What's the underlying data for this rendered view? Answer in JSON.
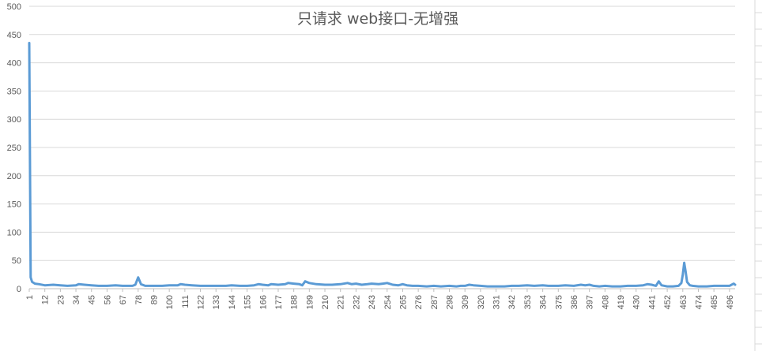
{
  "chart_data": {
    "type": "line",
    "title": "只请求 web接口-无增强",
    "xlabel": "",
    "ylabel": "",
    "ylim": [
      0,
      500
    ],
    "yticks": [
      0,
      50,
      100,
      150,
      200,
      250,
      300,
      350,
      400,
      450,
      500
    ],
    "xlim": [
      1,
      500
    ],
    "xticks": [
      1,
      12,
      23,
      34,
      45,
      56,
      67,
      78,
      89,
      100,
      111,
      122,
      133,
      144,
      155,
      166,
      177,
      188,
      199,
      210,
      221,
      232,
      243,
      254,
      265,
      276,
      287,
      298,
      309,
      320,
      331,
      342,
      353,
      364,
      375,
      386,
      397,
      408,
      419,
      430,
      441,
      452,
      463,
      474,
      485,
      496
    ],
    "grid": true,
    "legend": "none",
    "series": [
      {
        "color": "#5b9bd5",
        "points": [
          [
            1,
            435
          ],
          [
            2,
            20
          ],
          [
            3,
            12
          ],
          [
            5,
            9
          ],
          [
            8,
            8
          ],
          [
            12,
            6
          ],
          [
            18,
            7
          ],
          [
            23,
            6
          ],
          [
            28,
            5
          ],
          [
            34,
            6
          ],
          [
            36,
            8
          ],
          [
            40,
            7
          ],
          [
            45,
            6
          ],
          [
            50,
            5
          ],
          [
            56,
            5
          ],
          [
            62,
            6
          ],
          [
            67,
            5
          ],
          [
            74,
            5
          ],
          [
            76,
            7
          ],
          [
            78,
            20
          ],
          [
            80,
            8
          ],
          [
            83,
            5
          ],
          [
            89,
            5
          ],
          [
            95,
            5
          ],
          [
            100,
            6
          ],
          [
            106,
            6
          ],
          [
            108,
            8
          ],
          [
            111,
            7
          ],
          [
            116,
            6
          ],
          [
            122,
            5
          ],
          [
            128,
            5
          ],
          [
            133,
            5
          ],
          [
            140,
            5
          ],
          [
            144,
            6
          ],
          [
            150,
            5
          ],
          [
            155,
            5
          ],
          [
            160,
            6
          ],
          [
            163,
            8
          ],
          [
            166,
            7
          ],
          [
            170,
            6
          ],
          [
            172,
            8
          ],
          [
            177,
            7
          ],
          [
            182,
            8
          ],
          [
            184,
            10
          ],
          [
            188,
            9
          ],
          [
            192,
            8
          ],
          [
            194,
            6
          ],
          [
            196,
            13
          ],
          [
            199,
            10
          ],
          [
            204,
            8
          ],
          [
            210,
            7
          ],
          [
            215,
            7
          ],
          [
            221,
            8
          ],
          [
            226,
            10
          ],
          [
            229,
            8
          ],
          [
            232,
            9
          ],
          [
            236,
            7
          ],
          [
            240,
            8
          ],
          [
            243,
            9
          ],
          [
            248,
            8
          ],
          [
            251,
            9
          ],
          [
            254,
            10
          ],
          [
            258,
            7
          ],
          [
            262,
            6
          ],
          [
            265,
            8
          ],
          [
            268,
            6
          ],
          [
            272,
            5
          ],
          [
            276,
            5
          ],
          [
            282,
            4
          ],
          [
            287,
            5
          ],
          [
            292,
            4
          ],
          [
            298,
            5
          ],
          [
            303,
            4
          ],
          [
            306,
            5
          ],
          [
            309,
            5
          ],
          [
            312,
            7
          ],
          [
            315,
            6
          ],
          [
            320,
            5
          ],
          [
            325,
            4
          ],
          [
            331,
            4
          ],
          [
            337,
            4
          ],
          [
            342,
            5
          ],
          [
            347,
            5
          ],
          [
            353,
            6
          ],
          [
            358,
            5
          ],
          [
            364,
            6
          ],
          [
            368,
            5
          ],
          [
            375,
            5
          ],
          [
            380,
            6
          ],
          [
            386,
            5
          ],
          [
            391,
            7
          ],
          [
            394,
            6
          ],
          [
            397,
            7
          ],
          [
            400,
            5
          ],
          [
            404,
            4
          ],
          [
            408,
            5
          ],
          [
            413,
            4
          ],
          [
            419,
            4
          ],
          [
            424,
            5
          ],
          [
            430,
            5
          ],
          [
            435,
            6
          ],
          [
            438,
            8
          ],
          [
            441,
            7
          ],
          [
            444,
            5
          ],
          [
            446,
            13
          ],
          [
            448,
            6
          ],
          [
            452,
            4
          ],
          [
            456,
            4
          ],
          [
            460,
            5
          ],
          [
            462,
            10
          ],
          [
            463,
            25
          ],
          [
            464,
            46
          ],
          [
            465,
            30
          ],
          [
            466,
            12
          ],
          [
            468,
            6
          ],
          [
            470,
            5
          ],
          [
            474,
            4
          ],
          [
            480,
            4
          ],
          [
            485,
            5
          ],
          [
            490,
            5
          ],
          [
            496,
            5
          ],
          [
            499,
            9
          ],
          [
            500,
            7
          ]
        ]
      }
    ]
  }
}
